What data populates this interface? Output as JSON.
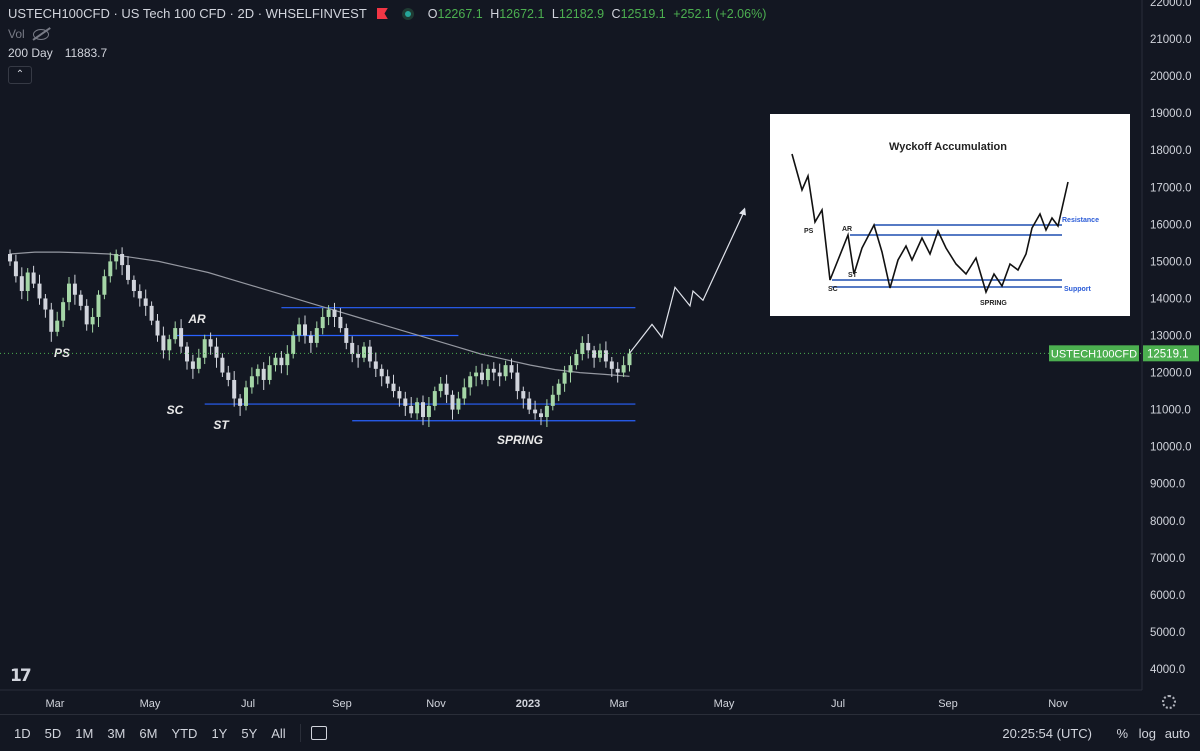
{
  "header": {
    "title": "USTECH100CFD · US Tech 100 CFD · 2D · WHSELFINVEST",
    "ohlc": [
      {
        "key": "O",
        "value": "12267.1"
      },
      {
        "key": "H",
        "value": "12672.1"
      },
      {
        "key": "L",
        "value": "12182.9"
      },
      {
        "key": "C",
        "value": "12519.1"
      }
    ],
    "change": "+252.1 (+2.06%)",
    "vol_label": "Vol",
    "ma_label": "200 Day",
    "ma_value": "11883.7"
  },
  "colors": {
    "background": "#131722",
    "up": "#a5d6a7",
    "down": "#d1d4dc",
    "ma": "#9598a1",
    "lines": "#2962ff",
    "price_tag": "#4caf50"
  },
  "price_label": {
    "symbol": "USTECH100CFD",
    "price": "12519.1",
    "value": 12519.1
  },
  "bottom_bar": {
    "ranges": [
      "1D",
      "5D",
      "1M",
      "3M",
      "6M",
      "YTD",
      "1Y",
      "5Y",
      "All"
    ],
    "time": "20:25:54 (UTC)",
    "percent": "%",
    "log": "log",
    "auto": "auto"
  },
  "chart_data": {
    "type": "candlestick",
    "y_axis": {
      "range": [
        3500,
        22000
      ],
      "ticks": [
        "4000.0",
        "5000.0",
        "6000.0",
        "7000.0",
        "8000.0",
        "9000.0",
        "10000.0",
        "11000.0",
        "12000.0",
        "13000.0",
        "14000.0",
        "15000.0",
        "16000.0",
        "17000.0",
        "18000.0",
        "19000.0",
        "20000.0",
        "21000.0",
        "22000.0"
      ]
    },
    "x_axis": {
      "ticks": [
        "Mar",
        "May",
        "Jul",
        "Sep",
        "Nov",
        "2023",
        "Mar",
        "May",
        "Jul",
        "Sep",
        "Nov"
      ],
      "bold": "2023"
    },
    "candle_closes": [
      15000,
      14600,
      14200,
      14700,
      14400,
      14000,
      13700,
      13100,
      13400,
      13900,
      14400,
      14100,
      13800,
      13300,
      13500,
      14100,
      14600,
      15000,
      15200,
      14900,
      14500,
      14200,
      14000,
      13800,
      13400,
      13000,
      12600,
      12900,
      13200,
      12700,
      12300,
      12100,
      12400,
      12900,
      12700,
      12400,
      12000,
      11800,
      11300,
      11100,
      11600,
      11900,
      12100,
      11800,
      12200,
      12400,
      12200,
      12500,
      13000,
      13300,
      13000,
      12800,
      13200,
      13500,
      13700,
      13500,
      13200,
      12800,
      12500,
      12400,
      12700,
      12300,
      12100,
      11900,
      11700,
      11500,
      11300,
      11100,
      10900,
      11200,
      10800,
      11100,
      11500,
      11700,
      11400,
      11000,
      11300,
      11600,
      11900,
      12000,
      11800,
      12100,
      12000,
      11900,
      12200,
      12000,
      11500,
      11300,
      11000,
      10900,
      10800,
      11100,
      11400,
      11700,
      12000,
      12200,
      12500,
      12800,
      12600,
      12400,
      12600,
      12300,
      12100,
      12000,
      12200,
      12519
    ],
    "ma_200": [
      15200,
      15250,
      15250,
      15230,
      15200,
      15100,
      15000,
      14850,
      14700,
      14500,
      14300,
      14100,
      13900,
      13700,
      13500,
      13300,
      13100,
      12900,
      12700,
      12500,
      12350,
      12200,
      12080,
      12000,
      11950,
      11900
    ],
    "projection": [
      12519,
      13300,
      12950,
      14300,
      13800,
      14200,
      13950,
      16400
    ],
    "annotations": [
      {
        "label": "PS",
        "x_index": 8,
        "price": 12600
      },
      {
        "label": "AR",
        "x_index": 28,
        "price": 13450
      },
      {
        "label": "SC",
        "x_index": 25,
        "price": 11000
      },
      {
        "label": "ST",
        "x_index": 32,
        "price": 10600
      },
      {
        "label": "SPRING",
        "x_index": 78,
        "price": 10300
      }
    ],
    "levels": [
      {
        "name": "resistance-upper",
        "price": 13750,
        "from_index": 46,
        "to_index": 106
      },
      {
        "name": "resistance-lower",
        "price": 13000,
        "from_index": 28,
        "to_index": 76
      },
      {
        "name": "support-upper",
        "price": 11150,
        "from_index": 33,
        "to_index": 106
      },
      {
        "name": "support-lower",
        "price": 10700,
        "from_index": 58,
        "to_index": 106
      }
    ]
  },
  "inset": {
    "title": "Wyckoff Accumulation",
    "labels": {
      "ps": "PS",
      "ar": "AR",
      "sc": "SC",
      "st": "ST",
      "spring": "SPRING",
      "resistance": "Resistance",
      "support": "Support"
    }
  }
}
